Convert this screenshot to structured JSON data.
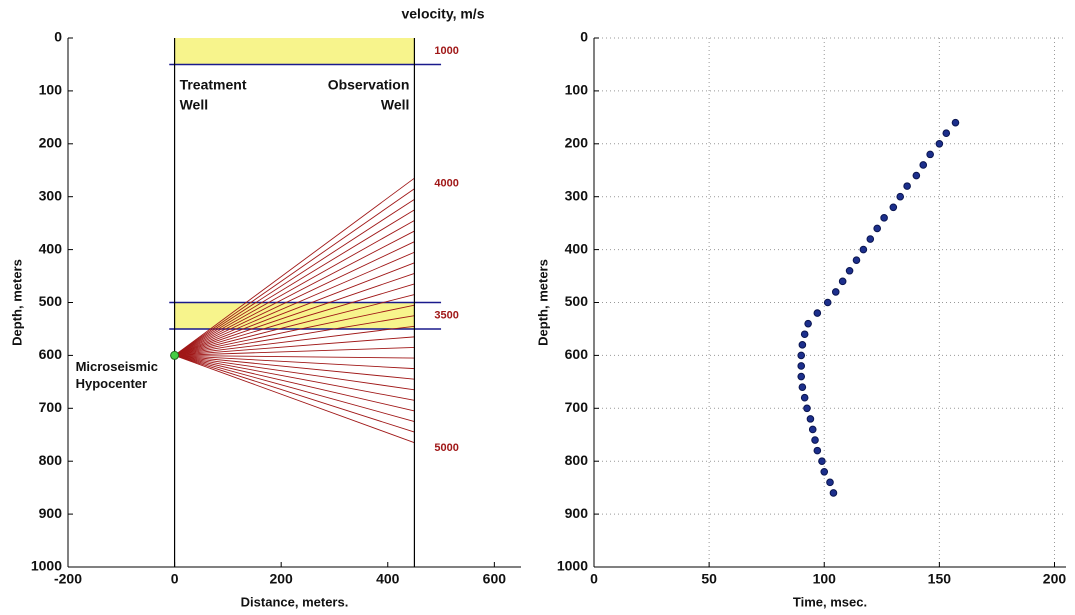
{
  "chart_data": [
    {
      "type": "ray-diagram",
      "title": "velocity, m/s",
      "x_label": "Distance, meters.",
      "y_label": "Depth, meters",
      "xlim": [
        -200,
        650
      ],
      "xticks": [
        -200,
        0,
        200,
        400,
        600
      ],
      "ylim": [
        0,
        1000
      ],
      "yticks": [
        0,
        100,
        200,
        300,
        400,
        500,
        600,
        700,
        800,
        900,
        1000
      ],
      "y_inverted": true,
      "layers": [
        {
          "top": 0,
          "bottom": 50,
          "velocity": 1000,
          "color": "#f7f48c"
        },
        {
          "top": 50,
          "bottom": 500,
          "velocity": 4000
        },
        {
          "top": 500,
          "bottom": 550,
          "velocity": 3500,
          "color": "#f7f48c"
        },
        {
          "top": 550,
          "bottom": 1000,
          "velocity": 5000
        }
      ],
      "wells": [
        {
          "label": [
            "Treatment",
            "Well"
          ],
          "x": 0
        },
        {
          "label": [
            "Observation",
            "Well"
          ],
          "x": 450
        }
      ],
      "hypocenter": {
        "label": [
          "Microseismic",
          "Hypocenter"
        ],
        "x": 0,
        "depth": 600,
        "color": "#44cc44"
      },
      "ray_color": "#a01818",
      "receiver_depths": [
        265,
        285,
        305,
        325,
        345,
        365,
        385,
        405,
        425,
        445,
        465,
        485,
        505,
        525,
        545,
        565,
        585,
        605,
        625,
        645,
        665,
        685,
        705,
        725,
        745,
        765
      ]
    },
    {
      "type": "scatter",
      "x_label": "Time, msec.",
      "y_label": "Depth, meters",
      "xlim": [
        0,
        205
      ],
      "xticks": [
        0,
        50,
        100,
        150,
        200
      ],
      "ylim": [
        0,
        1000
      ],
      "yticks": [
        0,
        100,
        200,
        300,
        400,
        500,
        600,
        700,
        800,
        900,
        1000
      ],
      "y_inverted": true,
      "grid": true,
      "color": "#1c2f8c",
      "x": [
        157,
        153,
        150,
        146,
        143,
        140,
        136,
        133,
        130,
        126,
        123,
        120,
        117,
        114,
        111,
        108,
        105,
        101.5,
        97,
        93,
        91.5,
        90.5,
        90,
        90,
        90,
        90.5,
        91.5,
        92.5,
        94,
        95,
        96,
        97,
        99,
        100,
        102.5,
        104
      ],
      "values": [
        160,
        180,
        200,
        220,
        240,
        260,
        280,
        300,
        320,
        340,
        360,
        380,
        400,
        420,
        440,
        460,
        480,
        500,
        520,
        540,
        560,
        580,
        600,
        620,
        640,
        660,
        680,
        700,
        720,
        740,
        760,
        780,
        800,
        820,
        840,
        860
      ]
    }
  ]
}
